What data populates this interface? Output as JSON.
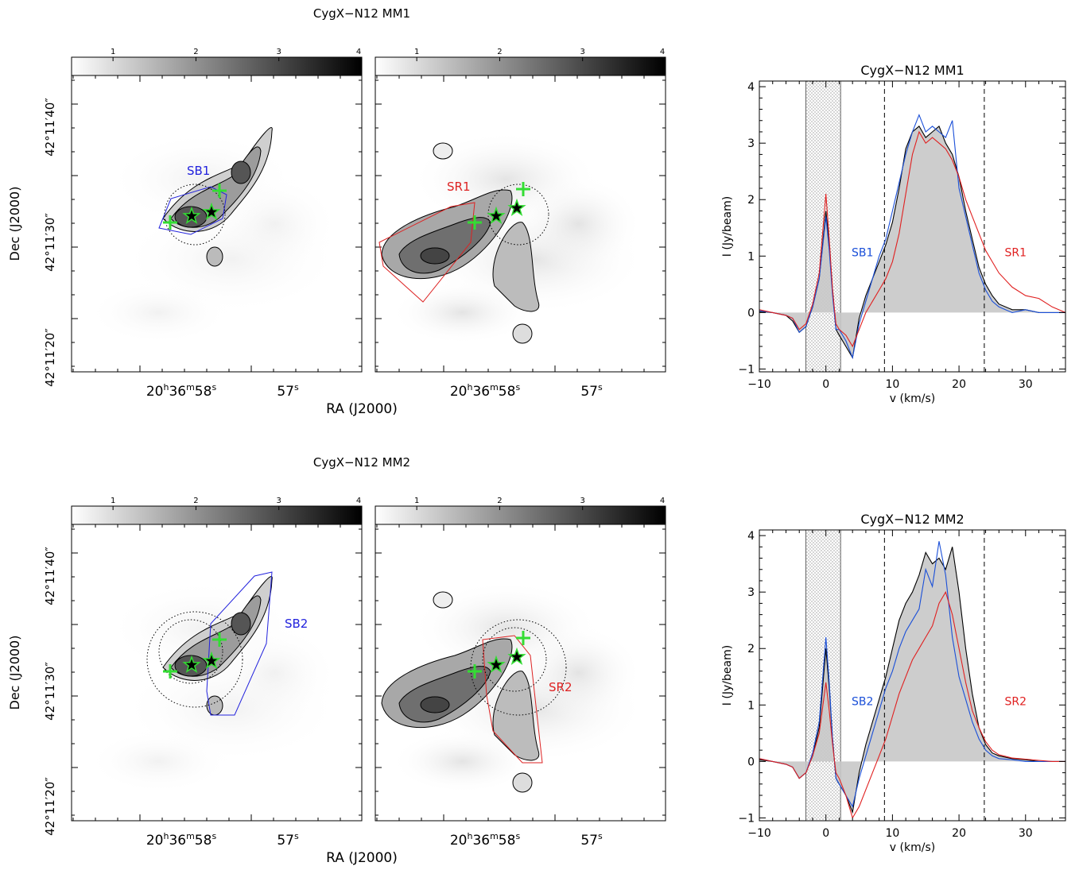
{
  "panel_titles": [
    "CygX−N12 MM1",
    "CygX−N12 MM2"
  ],
  "colorbar": {
    "ticks": [
      "1",
      "2",
      "3",
      "4"
    ],
    "range": [
      0.5,
      4.0
    ]
  },
  "map_axes": {
    "xlabel": "RA (J2000)",
    "ylabel": "Dec (J2000)",
    "ra_ticks": [
      {
        "h": "20",
        "m": "36",
        "s": "58",
        "ra_s": 58.0
      },
      {
        "s": "57",
        "ra_s": 57.0
      }
    ],
    "dec_ticks": [
      {
        "deg": "42",
        "min": "11",
        "sec": "20″",
        "dec_s": 20
      },
      {
        "deg": "42",
        "min": "11",
        "sec": "30″",
        "dec_s": 30
      },
      {
        "deg": "42",
        "min": "11",
        "sec": "40″",
        "dec_s": 40
      }
    ]
  },
  "map_labels": {
    "row1_left": {
      "text": "SB1",
      "color": "#2222dd"
    },
    "row1_right": {
      "text": "SR1",
      "color": "#dd2222"
    },
    "row2_left": {
      "text": "SB2",
      "color": "#2222dd"
    },
    "row2_right": {
      "text": "SR2",
      "color": "#dd2222"
    }
  },
  "spectra": {
    "xlabel": "v (km/s)",
    "ylabel": "I (Jy/beam)",
    "xticks": [
      "−10",
      "0",
      "10",
      "20",
      "30"
    ],
    "yticks": [
      "−1",
      "0",
      "1",
      "2",
      "3",
      "4"
    ],
    "colors": {
      "total": "#000000",
      "blue": "#1a4fd8",
      "red": "#e02020",
      "fill": "#c8c8c8"
    }
  },
  "chart_data": [
    {
      "type": "line",
      "title": "CygX−N12 MM1",
      "xlabel": "v (km/s)",
      "ylabel": "I (Jy/beam)",
      "xlim": [
        -10,
        36
      ],
      "ylim": [
        -1.05,
        4.1
      ],
      "shaded_band": [
        -3,
        2.2
      ],
      "vlines": [
        8.8,
        23.8
      ],
      "labels": {
        "blue": "SB1",
        "red": "SR1"
      },
      "series": [
        {
          "x": [
            -10,
            -8,
            -6,
            -5,
            -4,
            -3,
            -2,
            -1,
            0,
            0.5,
            1,
            1.5,
            2,
            3,
            4,
            5,
            6,
            7,
            8,
            9,
            10,
            11,
            12,
            13,
            14,
            15,
            16,
            17,
            18,
            19,
            20,
            21,
            22,
            23,
            24,
            25,
            26,
            28,
            30,
            32,
            34,
            36
          ],
          "y": [
            0.02,
            0.0,
            -0.05,
            -0.15,
            -0.35,
            -0.25,
            0.1,
            0.6,
            1.8,
            1.2,
            0.4,
            -0.3,
            -0.4,
            -0.6,
            -0.8,
            -0.1,
            0.3,
            0.6,
            0.9,
            1.2,
            1.6,
            2.2,
            2.9,
            3.2,
            3.3,
            3.1,
            3.2,
            3.3,
            3.0,
            2.8,
            2.4,
            1.8,
            1.3,
            0.8,
            0.5,
            0.3,
            0.15,
            0.05,
            0.05,
            0.0,
            0.0,
            0.0
          ]
        },
        {
          "x": [
            -10,
            -8,
            -6,
            -5,
            -4,
            -3,
            -2,
            -1,
            0,
            0.5,
            1,
            1.5,
            2,
            3,
            4,
            5,
            6,
            7,
            8,
            9,
            10,
            11,
            12,
            13,
            14,
            15,
            16,
            17,
            18,
            19,
            20,
            21,
            22,
            23,
            24,
            25,
            26,
            28,
            30,
            32,
            34,
            36
          ],
          "y": [
            0.03,
            0.0,
            -0.05,
            -0.1,
            -0.35,
            -0.25,
            0.1,
            0.6,
            1.7,
            1.1,
            0.3,
            -0.3,
            -0.3,
            -0.5,
            -0.8,
            -0.2,
            0.2,
            0.6,
            1.0,
            1.3,
            1.8,
            2.3,
            2.8,
            3.2,
            3.5,
            3.2,
            3.3,
            3.2,
            3.1,
            3.4,
            2.2,
            1.7,
            1.2,
            0.7,
            0.4,
            0.2,
            0.1,
            0.0,
            0.05,
            0.0,
            0.0,
            0.0
          ]
        },
        {
          "x": [
            -10,
            -8,
            -6,
            -5,
            -4,
            -3,
            -2,
            -1,
            0,
            0.5,
            1,
            1.5,
            2,
            3,
            4,
            5,
            6,
            7,
            8,
            9,
            10,
            11,
            12,
            13,
            14,
            15,
            16,
            17,
            18,
            19,
            20,
            21,
            22,
            23,
            24,
            25,
            26,
            28,
            30,
            32,
            34,
            36
          ],
          "y": [
            0.05,
            0.0,
            -0.05,
            -0.1,
            -0.3,
            -0.2,
            0.15,
            0.7,
            2.1,
            1.3,
            0.4,
            -0.2,
            -0.3,
            -0.4,
            -0.6,
            -0.3,
            0.0,
            0.2,
            0.4,
            0.6,
            0.9,
            1.4,
            2.1,
            2.8,
            3.2,
            3.0,
            3.1,
            3.0,
            2.9,
            2.7,
            2.4,
            2.0,
            1.7,
            1.4,
            1.1,
            0.9,
            0.7,
            0.45,
            0.3,
            0.25,
            0.1,
            0.0
          ]
        }
      ]
    },
    {
      "type": "line",
      "title": "CygX−N12 MM2",
      "xlabel": "v (km/s)",
      "ylabel": "I (Jy/beam)",
      "xlim": [
        -10,
        36
      ],
      "ylim": [
        -1.05,
        4.1
      ],
      "shaded_band": [
        -3,
        2.2
      ],
      "vlines": [
        8.8,
        23.8
      ],
      "labels": {
        "blue": "SB2",
        "red": "SR2"
      },
      "series": [
        {
          "x": [
            -10,
            -8,
            -6,
            -5,
            -4,
            -3,
            -2,
            -1,
            0,
            0.5,
            1,
            1.5,
            2,
            3,
            4,
            5,
            6,
            7,
            8,
            9,
            10,
            11,
            12,
            13,
            14,
            15,
            16,
            17,
            18,
            19,
            20,
            21,
            22,
            23,
            24,
            25,
            26,
            28,
            30,
            32,
            34,
            36
          ],
          "y": [
            0.03,
            0.0,
            -0.05,
            -0.1,
            -0.3,
            -0.2,
            0.1,
            0.6,
            2.0,
            1.3,
            0.4,
            -0.3,
            -0.4,
            -0.6,
            -0.9,
            -0.2,
            0.3,
            0.7,
            1.1,
            1.5,
            2.0,
            2.5,
            2.8,
            3.0,
            3.3,
            3.7,
            3.5,
            3.6,
            3.4,
            3.8,
            3.0,
            2.0,
            1.2,
            0.6,
            0.3,
            0.15,
            0.1,
            0.05,
            0.03,
            0.0,
            0.0,
            0.0
          ]
        },
        {
          "x": [
            -10,
            -8,
            -6,
            -5,
            -4,
            -3,
            -2,
            -1,
            0,
            0.5,
            1,
            1.5,
            2,
            3,
            4,
            5,
            6,
            7,
            8,
            9,
            10,
            11,
            12,
            13,
            14,
            15,
            16,
            17,
            18,
            19,
            20,
            21,
            22,
            23,
            24,
            25,
            26,
            28,
            30,
            32,
            34,
            36
          ],
          "y": [
            0.05,
            0.0,
            -0.05,
            -0.1,
            -0.3,
            -0.2,
            0.15,
            0.7,
            2.2,
            1.4,
            0.4,
            -0.3,
            -0.4,
            -0.6,
            -0.8,
            -0.3,
            0.1,
            0.5,
            0.9,
            1.3,
            1.6,
            2.0,
            2.3,
            2.5,
            2.7,
            3.4,
            3.1,
            3.9,
            3.3,
            2.2,
            1.5,
            1.1,
            0.7,
            0.4,
            0.2,
            0.1,
            0.05,
            0.03,
            0.0,
            0.0,
            0.0,
            0.0
          ]
        },
        {
          "x": [
            -10,
            -8,
            -6,
            -5,
            -4,
            -3,
            -2,
            -1,
            0,
            0.5,
            1,
            1.5,
            2,
            3,
            4,
            5,
            6,
            7,
            8,
            9,
            10,
            11,
            12,
            13,
            14,
            15,
            16,
            17,
            18,
            19,
            20,
            21,
            22,
            23,
            24,
            25,
            26,
            28,
            30,
            32,
            34,
            36
          ],
          "y": [
            0.05,
            0.0,
            -0.05,
            -0.1,
            -0.3,
            -0.2,
            0.1,
            0.5,
            1.4,
            0.9,
            0.3,
            -0.2,
            -0.3,
            -0.6,
            -1.0,
            -0.8,
            -0.5,
            -0.2,
            0.1,
            0.4,
            0.8,
            1.2,
            1.5,
            1.8,
            2.0,
            2.2,
            2.4,
            2.8,
            3.0,
            2.6,
            2.0,
            1.4,
            0.9,
            0.6,
            0.35,
            0.2,
            0.12,
            0.06,
            0.04,
            0.02,
            0.0,
            0.0
          ]
        }
      ]
    }
  ]
}
